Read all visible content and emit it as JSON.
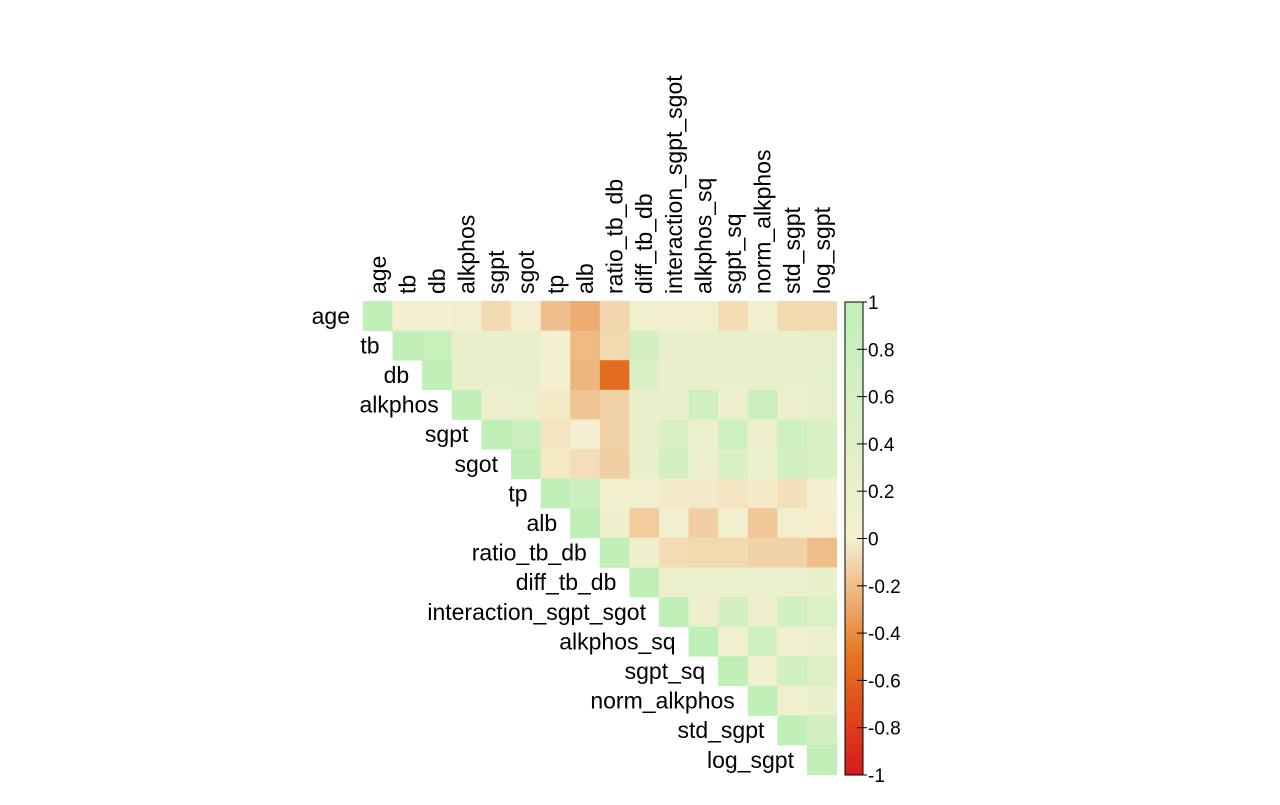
{
  "chart_data": {
    "type": "heatmap",
    "layout": "upper-triangle",
    "variables": [
      "age",
      "tb",
      "db",
      "alkphos",
      "sgpt",
      "sgot",
      "tp",
      "alb",
      "ratio_tb_db",
      "diff_tb_db",
      "interaction_sgpt_sgot",
      "alkphos_sq",
      "sgpt_sq",
      "norm_alkphos",
      "std_sgpt",
      "log_sgpt"
    ],
    "matrix": [
      [
        1,
        0.01,
        0.01,
        0.08,
        -0.09,
        0.01,
        -0.19,
        -0.27,
        -0.1,
        0.1,
        0.04,
        0.08,
        -0.08,
        0.08,
        -0.09,
        -0.09
      ],
      [
        0.01,
        1,
        0.87,
        0.21,
        0.21,
        0.24,
        0.01,
        -0.22,
        -0.09,
        0.63,
        0.21,
        0.21,
        0.21,
        0.21,
        0.21,
        0.28
      ],
      [
        0.01,
        0.87,
        1,
        0.23,
        0.23,
        0.26,
        0.01,
        -0.23,
        -0.54,
        0.49,
        0.23,
        0.23,
        0.23,
        0.23,
        0.23,
        0.3
      ],
      [
        0.08,
        0.21,
        0.23,
        1,
        0.13,
        0.17,
        -0.03,
        -0.17,
        -0.12,
        0.2,
        0.2,
        0.75,
        0.13,
        0.8,
        0.13,
        0.26
      ],
      [
        -0.09,
        0.21,
        0.23,
        0.13,
        1,
        0.79,
        -0.04,
        0.02,
        -0.12,
        0.2,
        0.55,
        0.13,
        0.73,
        0.13,
        0.73,
        0.55
      ],
      [
        0.01,
        0.24,
        0.26,
        0.17,
        0.79,
        1,
        -0.03,
        -0.07,
        -0.13,
        0.23,
        0.66,
        0.17,
        0.55,
        0.17,
        0.66,
        0.53
      ],
      [
        -0.19,
        0.01,
        0.01,
        -0.03,
        -0.04,
        -0.03,
        1,
        0.78,
        0.06,
        0.06,
        -0.02,
        -0.02,
        -0.04,
        -0.02,
        -0.06,
        0.02
      ],
      [
        -0.27,
        -0.22,
        -0.23,
        -0.17,
        0.02,
        -0.07,
        0.78,
        1,
        0.14,
        -0.14,
        0.08,
        -0.13,
        0.06,
        -0.16,
        0.08,
        -0.01
      ],
      [
        -0.1,
        -0.09,
        -0.54,
        -0.12,
        -0.12,
        -0.13,
        0.06,
        0.14,
        1,
        0.13,
        -0.08,
        -0.09,
        -0.09,
        -0.12,
        -0.12,
        -0.2
      ],
      [
        0.1,
        0.63,
        0.49,
        0.2,
        0.2,
        0.23,
        0.06,
        -0.14,
        0.13,
        1,
        0.18,
        0.19,
        0.19,
        0.19,
        0.19,
        0.25
      ],
      [
        0.04,
        0.21,
        0.23,
        0.2,
        0.55,
        0.66,
        -0.02,
        0.08,
        -0.08,
        0.18,
        1,
        0.13,
        0.63,
        0.13,
        0.68,
        0.5
      ],
      [
        0.08,
        0.21,
        0.23,
        0.75,
        0.13,
        0.17,
        -0.02,
        -0.13,
        -0.09,
        0.19,
        0.13,
        1,
        0.09,
        0.68,
        0.09,
        0.17
      ],
      [
        -0.08,
        0.21,
        0.23,
        0.13,
        0.73,
        0.55,
        -0.04,
        0.06,
        -0.09,
        0.19,
        0.63,
        0.09,
        1,
        0.09,
        0.7,
        0.45
      ],
      [
        0.08,
        0.21,
        0.23,
        0.8,
        0.13,
        0.17,
        -0.02,
        -0.16,
        -0.12,
        0.19,
        0.13,
        0.68,
        0.09,
        1,
        0.09,
        0.21
      ],
      [
        -0.09,
        0.21,
        0.23,
        0.13,
        0.73,
        0.66,
        -0.06,
        0.08,
        -0.12,
        0.19,
        0.68,
        0.09,
        0.7,
        0.09,
        1,
        0.62
      ],
      [
        -0.09,
        0.28,
        0.3,
        0.26,
        0.55,
        0.53,
        0.02,
        -0.01,
        -0.2,
        0.25,
        0.5,
        0.17,
        0.45,
        0.21,
        0.62,
        1
      ]
    ],
    "colorbar": {
      "min": -1,
      "max": 1,
      "ticks": [
        "1",
        "0.8",
        "0.6",
        "0.4",
        "0.2",
        "0",
        "-0.2",
        "-0.4",
        "-0.6",
        "-0.8",
        "-1"
      ],
      "stops": [
        {
          "value": -1.0,
          "color": "#d7191c"
        },
        {
          "value": -0.5,
          "color": "#e6741f"
        },
        {
          "value": 0.0,
          "color": "#f5efd0"
        },
        {
          "value": 1.0,
          "color": "#c0f0b8"
        }
      ]
    },
    "title": "",
    "xlabel": "",
    "ylabel": ""
  }
}
